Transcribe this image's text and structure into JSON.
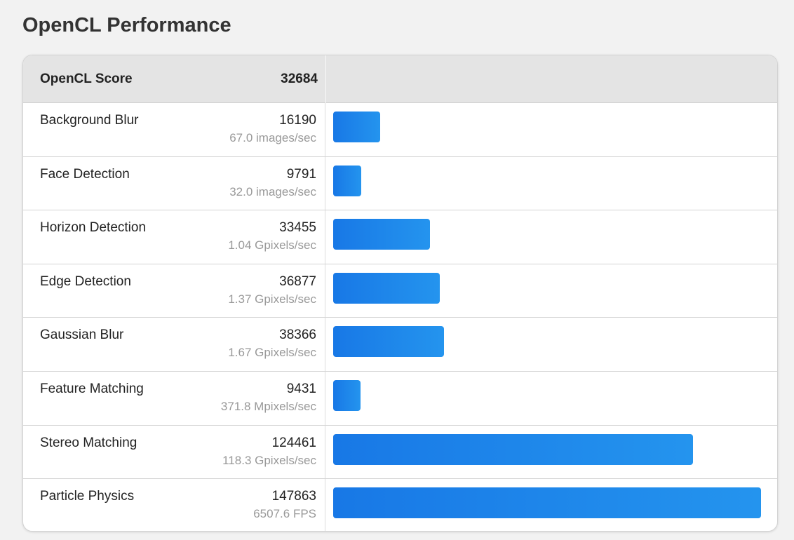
{
  "page": {
    "title": "OpenCL Performance"
  },
  "summary": {
    "label": "OpenCL Score",
    "score": "32684"
  },
  "accent_color": "#1a7fe8",
  "max_score": 147863,
  "rows": [
    {
      "name": "Background Blur",
      "score": "16190",
      "unit": "67.0 images/sec",
      "value": 16190
    },
    {
      "name": "Face Detection",
      "score": "9791",
      "unit": "32.0 images/sec",
      "value": 9791
    },
    {
      "name": "Horizon Detection",
      "score": "33455",
      "unit": "1.04 Gpixels/sec",
      "value": 33455
    },
    {
      "name": "Edge Detection",
      "score": "36877",
      "unit": "1.37 Gpixels/sec",
      "value": 36877
    },
    {
      "name": "Gaussian Blur",
      "score": "38366",
      "unit": "1.67 Gpixels/sec",
      "value": 38366
    },
    {
      "name": "Feature Matching",
      "score": "9431",
      "unit": "371.8 Mpixels/sec",
      "value": 9431
    },
    {
      "name": "Stereo Matching",
      "score": "124461",
      "unit": "118.3 Gpixels/sec",
      "value": 124461
    },
    {
      "name": "Particle Physics",
      "score": "147863",
      "unit": "6507.6 FPS",
      "value": 147863
    }
  ]
}
